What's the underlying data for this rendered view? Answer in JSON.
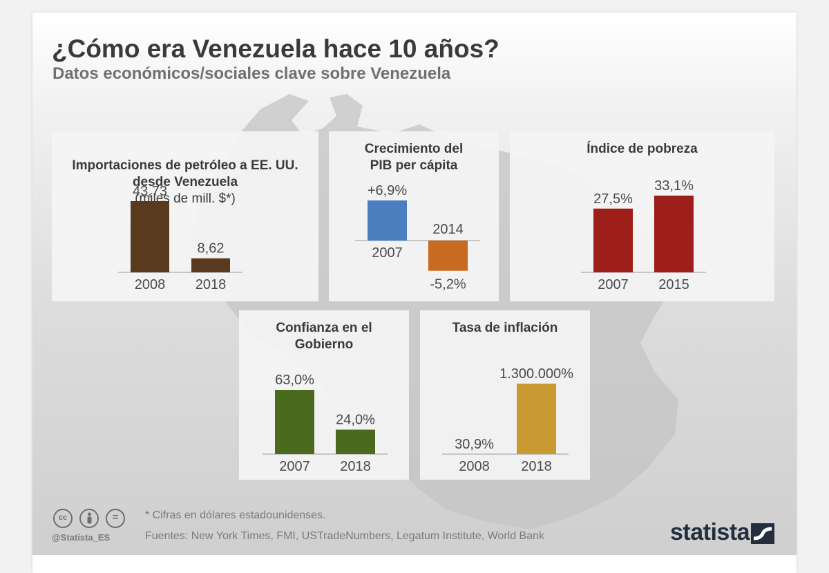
{
  "header": {
    "title": "¿Cómo era Venezuela hace 10 años?",
    "subtitle": "Datos económicos/sociales clave sobre Venezuela"
  },
  "chart_data": [
    {
      "type": "bar",
      "title_main": "Importaciones de petróleo a EE. UU. desde Venezuela",
      "title_unit": "(miles de mill. $*)",
      "categories": [
        "2008",
        "2018"
      ],
      "values": [
        43.73,
        8.62
      ],
      "value_labels": [
        "43,73",
        "8,62"
      ],
      "colors": [
        "#5a3a1e",
        "#5a3a1e"
      ],
      "ylim": [
        0,
        43.73
      ]
    },
    {
      "type": "bar",
      "title": "Crecimiento del PIB per cápita",
      "categories": [
        "2007",
        "2014"
      ],
      "values": [
        6.9,
        -5.2
      ],
      "value_labels": [
        "+6,9%",
        "-5,2%"
      ],
      "colors": [
        "#4a7fc0",
        "#c86a20"
      ],
      "ylim": [
        -5.2,
        6.9
      ]
    },
    {
      "type": "bar",
      "title": "Índice de pobreza",
      "categories": [
        "2007",
        "2015"
      ],
      "values": [
        27.5,
        33.1
      ],
      "value_labels": [
        "27,5%",
        "33,1%"
      ],
      "colors": [
        "#9e1f1a",
        "#9e1f1a"
      ],
      "ylim": [
        0,
        33.1
      ]
    },
    {
      "type": "bar",
      "title": "Confianza en el Gobierno",
      "categories": [
        "2007",
        "2018"
      ],
      "values": [
        63.0,
        24.0
      ],
      "value_labels": [
        "63,0%",
        "24,0%"
      ],
      "colors": [
        "#4a6b1e",
        "#4a6b1e"
      ],
      "ylim": [
        0,
        63.0
      ]
    },
    {
      "type": "bar",
      "title": "Tasa de inflación",
      "categories": [
        "2008",
        "2018"
      ],
      "values": [
        30.9,
        1300000
      ],
      "value_labels": [
        "30,9%",
        "1.300.000%"
      ],
      "colors": [
        "#c99a32",
        "#c99a32"
      ],
      "ylim": [
        0,
        1300000
      ]
    }
  ],
  "footer": {
    "note": "* Cifras en dólares estadounidenses.",
    "sources": "Fuentes: New York Times, FMI, USTradeNumbers, Legatum Institute, World Bank",
    "handle": "@Statista_ES",
    "brand": "statista",
    "cc_icons": [
      "cc-icon",
      "by-icon",
      "nd-icon"
    ]
  }
}
